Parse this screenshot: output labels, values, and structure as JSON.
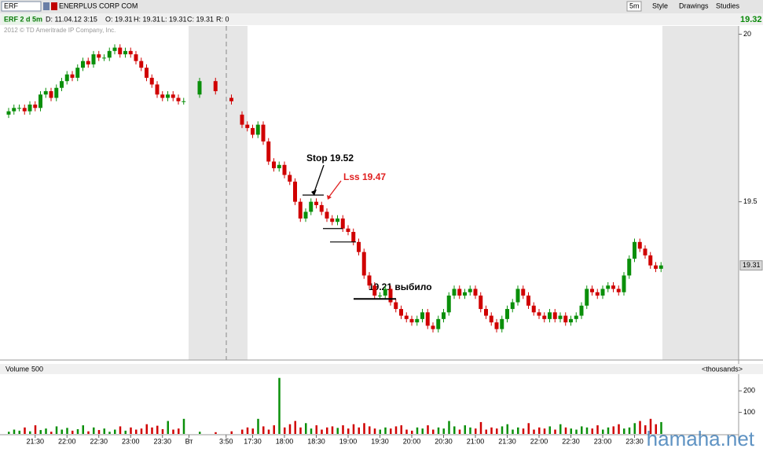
{
  "header": {
    "symbol": "ERF",
    "company": "ENERPLUS CORP COM",
    "date": "D: 11.04.12 3:15",
    "o": "O: 19.31",
    "h": "H: 19.31",
    "l": "L: 19.31",
    "c": "C: 19.31",
    "r": "R: 0",
    "chart_label": "ERF 2 d 5m",
    "copyright": "2012 © TD Ameritrade IP Company, Inc.",
    "period": "5m",
    "style": "Style",
    "drawings": "Drawings",
    "studies": "Studies",
    "last": "19.32",
    "watermark": "hamaha.net"
  },
  "chart_data": {
    "type": "candlestick",
    "up_color": "#0a8f0a",
    "down_color": "#d00000",
    "ylim": [
      19.03,
      20.02
    ],
    "yticks": [
      19.5,
      20
    ],
    "last_price": {
      "value": 19.31,
      "label": "19.31"
    },
    "xticks": [
      {
        "value": 5,
        "label": "21:30"
      },
      {
        "value": 11,
        "label": "22:00"
      },
      {
        "value": 17,
        "label": "22:30"
      },
      {
        "value": 23,
        "label": "23:00"
      },
      {
        "value": 29,
        "label": "23:30"
      },
      {
        "value": 34,
        "label": "Вт"
      },
      {
        "value": 41,
        "label": "3:50"
      },
      {
        "value": 46,
        "label": "17:30"
      },
      {
        "value": 52,
        "label": "18:00"
      },
      {
        "value": 58,
        "label": "18:30"
      },
      {
        "value": 64,
        "label": "19:00"
      },
      {
        "value": 70,
        "label": "19:30"
      },
      {
        "value": 76,
        "label": "20:00"
      },
      {
        "value": 82,
        "label": "20:30"
      },
      {
        "value": 88,
        "label": "21:00"
      },
      {
        "value": 94,
        "label": "21:30"
      },
      {
        "value": 100,
        "label": "22:00"
      },
      {
        "value": 106,
        "label": "22:30"
      },
      {
        "value": 112,
        "label": "23:00"
      },
      {
        "value": 118,
        "label": "23:30"
      }
    ],
    "open": [
      19.76,
      19.77,
      19.78,
      19.78,
      19.77,
      19.79,
      19.78,
      19.82,
      19.83,
      19.81,
      19.84,
      19.86,
      19.88,
      19.87,
      19.9,
      19.92,
      19.91,
      19.94,
      19.93,
      19.93,
      19.95,
      19.96,
      19.94,
      19.95,
      19.94,
      19.92,
      19.9,
      19.87,
      19.85,
      19.82,
      19.81,
      19.82,
      19.81,
      19.8,
      null,
      null,
      19.82,
      null,
      null,
      19.86,
      null,
      null,
      19.81,
      null,
      19.76,
      19.73,
      19.72,
      19.7,
      19.73,
      19.68,
      19.62,
      19.6,
      19.61,
      19.58,
      19.56,
      19.5,
      19.45,
      19.47,
      19.5,
      19.49,
      19.47,
      19.45,
      19.44,
      19.45,
      19.42,
      19.41,
      19.38,
      19.35,
      19.28,
      19.25,
      19.22,
      19.22,
      19.24,
      19.2,
      19.18,
      19.16,
      19.15,
      19.14,
      19.15,
      19.17,
      19.13,
      19.12,
      19.15,
      19.17,
      19.22,
      19.24,
      19.22,
      19.23,
      19.24,
      19.22,
      19.18,
      19.16,
      19.14,
      19.12,
      19.15,
      19.18,
      19.2,
      19.24,
      19.22,
      19.19,
      19.17,
      19.16,
      19.15,
      19.17,
      19.15,
      19.16,
      19.14,
      19.15,
      19.16,
      19.19,
      19.24,
      19.23,
      19.22,
      19.24,
      19.25,
      19.24,
      19.23,
      19.28,
      19.33,
      19.38,
      19.36,
      19.34,
      19.31,
      19.3
    ],
    "high": [
      19.78,
      19.79,
      19.79,
      19.79,
      19.8,
      19.8,
      19.83,
      19.84,
      19.84,
      19.85,
      19.87,
      19.89,
      19.89,
      19.91,
      19.93,
      19.93,
      19.95,
      19.95,
      19.94,
      19.96,
      19.97,
      19.97,
      19.96,
      19.96,
      19.95,
      19.93,
      19.91,
      19.88,
      19.86,
      19.83,
      19.83,
      19.83,
      19.82,
      19.81,
      null,
      null,
      19.87,
      null,
      null,
      19.87,
      null,
      null,
      19.82,
      null,
      19.77,
      19.74,
      19.73,
      19.74,
      19.74,
      19.69,
      19.63,
      19.62,
      19.62,
      19.59,
      19.57,
      19.51,
      19.48,
      19.51,
      19.51,
      19.5,
      19.48,
      19.46,
      19.46,
      19.46,
      19.43,
      19.42,
      19.39,
      19.36,
      19.29,
      19.26,
      19.23,
      19.25,
      19.25,
      19.21,
      19.19,
      19.17,
      19.16,
      19.16,
      19.18,
      19.18,
      19.14,
      19.16,
      19.18,
      19.23,
      19.25,
      19.25,
      19.24,
      19.25,
      19.25,
      19.23,
      19.19,
      19.17,
      19.15,
      19.16,
      19.19,
      19.21,
      19.25,
      19.25,
      19.23,
      19.2,
      19.18,
      19.17,
      19.18,
      19.18,
      19.17,
      19.17,
      19.16,
      19.17,
      19.2,
      19.25,
      19.25,
      19.24,
      19.25,
      19.26,
      19.26,
      19.25,
      19.29,
      19.34,
      19.39,
      19.39,
      19.37,
      19.35,
      19.32,
      19.32
    ],
    "low": [
      19.75,
      19.76,
      19.77,
      19.76,
      19.76,
      19.77,
      19.77,
      19.81,
      19.8,
      19.8,
      19.83,
      19.85,
      19.86,
      19.86,
      19.89,
      19.9,
      19.9,
      19.92,
      19.92,
      19.92,
      19.94,
      19.93,
      19.93,
      19.93,
      19.91,
      19.89,
      19.86,
      19.84,
      19.81,
      19.8,
      19.8,
      19.8,
      19.79,
      19.79,
      null,
      null,
      19.81,
      null,
      null,
      19.82,
      null,
      null,
      19.79,
      null,
      19.72,
      19.71,
      19.69,
      19.69,
      19.67,
      19.61,
      19.59,
      19.59,
      19.57,
      19.55,
      19.49,
      19.44,
      19.44,
      19.46,
      19.48,
      19.46,
      19.44,
      19.43,
      19.43,
      19.41,
      19.4,
      19.37,
      19.34,
      19.27,
      19.24,
      19.21,
      19.21,
      19.21,
      19.19,
      19.17,
      19.15,
      19.14,
      19.13,
      19.13,
      19.14,
      19.12,
      19.11,
      19.11,
      19.14,
      19.16,
      19.21,
      19.21,
      19.21,
      19.22,
      19.21,
      19.17,
      19.15,
      19.13,
      19.11,
      19.11,
      19.14,
      19.17,
      19.19,
      19.21,
      19.18,
      19.16,
      19.15,
      19.14,
      19.14,
      19.14,
      19.14,
      19.13,
      19.13,
      19.14,
      19.15,
      19.18,
      19.22,
      19.21,
      19.21,
      19.23,
      19.23,
      19.22,
      19.22,
      19.27,
      19.32,
      19.35,
      19.33,
      19.3,
      19.29,
      19.29
    ],
    "close": [
      19.77,
      19.78,
      19.78,
      19.77,
      19.79,
      19.78,
      19.82,
      19.83,
      19.81,
      19.84,
      19.86,
      19.88,
      19.87,
      19.9,
      19.92,
      19.91,
      19.94,
      19.93,
      19.93,
      19.95,
      19.96,
      19.94,
      19.95,
      19.94,
      19.92,
      19.9,
      19.87,
      19.85,
      19.82,
      19.81,
      19.82,
      19.81,
      19.8,
      19.8,
      null,
      null,
      19.86,
      null,
      null,
      19.83,
      null,
      null,
      19.8,
      null,
      19.73,
      19.72,
      19.7,
      19.73,
      19.68,
      19.62,
      19.6,
      19.61,
      19.58,
      19.56,
      19.5,
      19.45,
      19.47,
      19.5,
      19.49,
      19.47,
      19.45,
      19.44,
      19.45,
      19.42,
      19.41,
      19.38,
      19.35,
      19.28,
      19.25,
      19.22,
      19.22,
      19.24,
      19.2,
      19.18,
      19.16,
      19.15,
      19.14,
      19.15,
      19.17,
      19.13,
      19.12,
      19.15,
      19.17,
      19.22,
      19.24,
      19.22,
      19.23,
      19.24,
      19.22,
      19.18,
      19.16,
      19.14,
      19.12,
      19.15,
      19.18,
      19.2,
      19.24,
      19.22,
      19.19,
      19.17,
      19.16,
      19.15,
      19.17,
      19.15,
      19.16,
      19.14,
      19.15,
      19.16,
      19.19,
      19.24,
      19.23,
      19.22,
      19.24,
      19.25,
      19.24,
      19.23,
      19.28,
      19.33,
      19.38,
      19.36,
      19.34,
      19.31,
      19.3,
      19.31
    ],
    "volume": {
      "label": "Volume",
      "period": "500",
      "units": "<thousands>",
      "ylim": [
        0,
        270
      ],
      "yticks": [
        100,
        200
      ],
      "values": [
        10,
        20,
        15,
        30,
        12,
        40,
        18,
        25,
        10,
        35,
        20,
        28,
        15,
        22,
        40,
        12,
        30,
        18,
        25,
        10,
        20,
        35,
        15,
        30,
        20,
        25,
        45,
        30,
        38,
        22,
        60,
        20,
        25,
        70,
        null,
        null,
        10,
        null,
        null,
        8,
        null,
        null,
        12,
        null,
        20,
        30,
        25,
        70,
        35,
        20,
        40,
        260,
        30,
        45,
        60,
        30,
        50,
        25,
        40,
        20,
        30,
        35,
        28,
        40,
        25,
        45,
        30,
        50,
        35,
        25,
        20,
        30,
        25,
        35,
        40,
        20,
        15,
        30,
        25,
        40,
        20,
        30,
        25,
        60,
        35,
        20,
        40,
        30,
        25,
        55,
        20,
        30,
        25,
        35,
        45,
        20,
        30,
        25,
        50,
        20,
        30,
        25,
        35,
        20,
        45,
        30,
        25,
        20,
        35,
        30,
        25,
        40,
        20,
        30,
        35,
        45,
        25,
        30,
        50,
        60,
        40,
        70,
        45,
        55
      ]
    },
    "annotations": [
      {
        "text": "Stop 19.52",
        "color": "#000000"
      },
      {
        "text": "Lss 19.47",
        "color": "#e02020"
      },
      {
        "text": "19.21 выбило",
        "color": "#000000"
      }
    ],
    "levels": [
      19.52,
      19.42,
      19.38,
      19.21
    ]
  }
}
